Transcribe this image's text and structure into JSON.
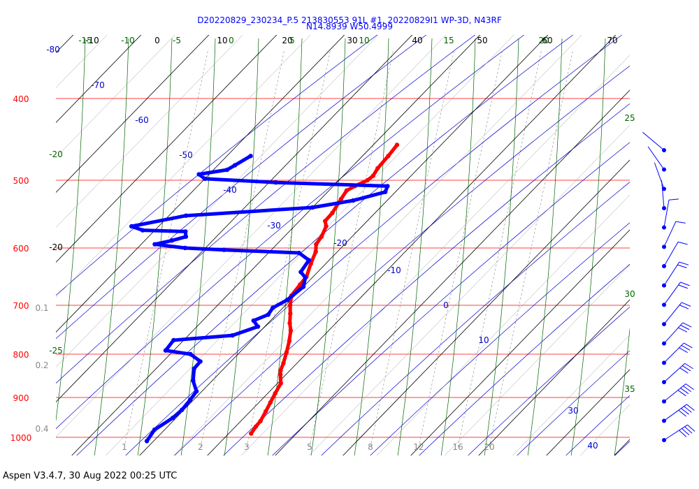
{
  "header": {
    "title_line1": "D20220829_230234_P.5 213830553 91L #1, 20220829I1 WP-3D, N43RF",
    "title_line2": "N14.8939 W50.4999"
  },
  "footer": {
    "text": "Aspen V3.4.7, 30 Aug 2022  00:25 UTC"
  },
  "colors": {
    "isobar": "#ff0000",
    "isotherm": "#000000",
    "dry_adiabat": "#0000cc",
    "moist_adiabat": "#006400",
    "mixing_ratio": "#888888",
    "temperature": "#ff0000",
    "dewpoint": "#0000ff",
    "wind": "#0000ff"
  },
  "chart_data": {
    "type": "line",
    "chart_kind": "skew-T log-P thermodynamic diagram",
    "pressure_labels": [
      "400",
      "500",
      "600",
      "700",
      "800",
      "900",
      "1000"
    ],
    "pressure_levels": [
      400,
      500,
      600,
      700,
      800,
      900,
      1000
    ],
    "isotherm_labels": [
      "-10",
      "0",
      "10",
      "20",
      "30",
      "40",
      "50",
      "60",
      "70"
    ],
    "isotherm_values": [
      -10,
      0,
      10,
      20,
      30,
      40,
      50,
      60,
      70
    ],
    "left_isotherm_label": "-20",
    "dry_adiabat_labels": [
      "-80",
      "-70",
      "-60",
      "-50",
      "-40",
      "-30",
      "-20",
      "-10",
      "0",
      "10",
      "30",
      "40"
    ],
    "moist_adiabat_top_labels": [
      "-15",
      "-10",
      "-5",
      "0",
      "5",
      "10",
      "15",
      "20"
    ],
    "moist_adiabat_side_labels": [
      "25",
      "30",
      "35"
    ],
    "moist_adiabat_left_labels": [
      "-20",
      "-25"
    ],
    "mixing_ratio_labels": [
      "1",
      "2",
      "3",
      "5",
      "8",
      "12",
      "16",
      "20"
    ],
    "mixing_ratio_left_labels": [
      "0.1",
      "0.2",
      "0.4"
    ],
    "series": [
      {
        "name": "temperature",
        "x": [
          -6.5,
          -6.2,
          -6.0,
          -5.6,
          -5.8,
          -6.8,
          -7.4,
          -7.0,
          -6.3,
          -6.2,
          -5.3,
          -4.5,
          -4.2,
          -3.2,
          -2.2,
          -1.0,
          -0.8,
          -0.5,
          0.7,
          1.9,
          3.2,
          4.4,
          5.7,
          6.9,
          8.0,
          8.6,
          9.2,
          10.5,
          11.1,
          11.7,
          12.3,
          12.9,
          13.0,
          13.3
        ],
        "y": [
          454,
          468,
          484,
          494,
          500,
          508,
          514,
          526,
          546,
          558,
          566,
          582,
          594,
          606,
          626,
          648,
          662,
          682,
          700,
          716,
          735,
          750,
          772,
          796,
          820,
          836,
          846,
          866,
          890,
          912,
          934,
          958,
          972,
          990
        ]
      },
      {
        "name": "dewpoint",
        "x": [
          -26.5,
          -27.5,
          -28.0,
          -31.5,
          -30.0,
          -19.0,
          -2.0,
          -1.5,
          -5.0,
          -10.0,
          -27.5,
          -34.0,
          -31.8,
          -25.3,
          -24.5,
          -26.0,
          -28.0,
          -23.0,
          -17.0,
          -5.5,
          -3.0,
          -2.5,
          -1.0,
          0.0,
          -0.5,
          -1.5,
          -1.2,
          -2.5,
          -1.0,
          -3.5,
          -11.5,
          -11.2,
          -7.0,
          -4.5,
          -4.4,
          -2.8,
          -0.8,
          -0.5,
          -0.3,
          -0.5,
          -1.5,
          -1.0
        ],
        "y": [
          468,
          480,
          486,
          492,
          498,
          503,
          508,
          516,
          528,
          538,
          550,
          566,
          572,
          574,
          582,
          588,
          594,
          600,
          603,
          608,
          620,
          640,
          650,
          666,
          690,
          705,
          718,
          730,
          742,
          760,
          770,
          792,
          800,
          816,
          832,
          860,
          885,
          906,
          930,
          950,
          980,
          1010
        ]
      }
    ],
    "wind_barb_count": 16,
    "xlabel": "",
    "ylabel": ""
  }
}
